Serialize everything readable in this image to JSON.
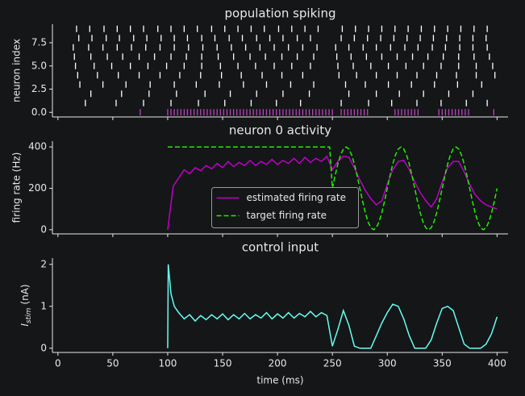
{
  "chart_data": [
    {
      "type": "raster",
      "title": "population spiking",
      "ylabel": "neuron index",
      "xlim": [
        -5,
        410
      ],
      "xticks": [
        0,
        50,
        100,
        150,
        200,
        250,
        300,
        350,
        400
      ],
      "show_xtick_labels": false,
      "ylim": [
        -0.5,
        9.5
      ],
      "yticks": [
        {
          "value": 0,
          "label": "0.0"
        },
        2.5,
        {
          "value": 5,
          "label": "5.0"
        },
        7.5
      ],
      "neurons": [
        {
          "index": 0,
          "color": "#c040c0",
          "spikes": [
            75,
            100,
            103,
            106,
            109,
            112,
            115,
            118,
            121,
            124,
            127,
            130,
            133,
            136,
            139,
            142,
            145,
            148,
            151,
            154,
            157,
            160,
            163,
            166,
            169,
            172,
            175,
            178,
            181,
            184,
            187,
            190,
            193,
            196,
            199,
            202,
            205,
            208,
            211,
            214,
            217,
            220,
            223,
            226,
            229,
            232,
            235,
            238,
            241,
            244,
            247,
            250,
            258,
            261,
            264,
            267,
            270,
            273,
            276,
            279,
            282,
            307,
            310,
            313,
            316,
            319,
            322,
            325,
            328,
            347,
            350,
            353,
            356,
            359,
            362,
            365,
            368,
            371,
            374,
            397
          ]
        },
        {
          "index": 1,
          "color": "#ffffff",
          "spikes": [
            25,
            53,
            78,
            103,
            128,
            152,
            176,
            199,
            221,
            258,
            283,
            304,
            327,
            349,
            372,
            391
          ]
        },
        {
          "index": 2,
          "color": "#ffffff",
          "spikes": [
            30,
            58,
            83,
            108,
            134,
            157,
            181,
            205,
            229,
            265,
            290,
            311,
            333,
            356,
            378
          ]
        },
        {
          "index": 3,
          "color": "#ffffff",
          "spikes": [
            20,
            41,
            62,
            84,
            106,
            126,
            147,
            169,
            190,
            212,
            233,
            262,
            280,
            301,
            322,
            343,
            364,
            386
          ]
        },
        {
          "index": 4,
          "color": "#ffffff",
          "spikes": [
            18,
            36,
            55,
            74,
            93,
            111,
            130,
            149,
            167,
            186,
            204,
            223,
            256,
            272,
            290,
            309,
            327,
            345,
            363,
            381,
            398
          ]
        },
        {
          "index": 5,
          "color": "#ffffff",
          "spikes": [
            16,
            33,
            49,
            66,
            82,
            99,
            115,
            131,
            148,
            164,
            180,
            197,
            213,
            230,
            255,
            269,
            285,
            301,
            317,
            333,
            349,
            365,
            381,
            396
          ]
        },
        {
          "index": 6,
          "color": "#ffffff",
          "spikes": [
            15,
            30,
            45,
            59,
            74,
            88,
            103,
            117,
            131,
            146,
            160,
            175,
            189,
            204,
            218,
            233,
            254,
            267,
            281,
            295,
            309,
            323,
            337,
            351,
            365,
            379,
            393
          ]
        },
        {
          "index": 7,
          "color": "#ffffff",
          "spikes": [
            14,
            28,
            41,
            54,
            67,
            80,
            93,
            106,
            119,
            132,
            145,
            158,
            171,
            184,
            197,
            210,
            223,
            236,
            253,
            265,
            278,
            290,
            303,
            316,
            328,
            341,
            353,
            366,
            378,
            391
          ]
        },
        {
          "index": 8,
          "color": "#ffffff",
          "spikes": [
            19,
            31,
            44,
            56,
            69,
            81,
            94,
            106,
            118,
            131,
            143,
            156,
            168,
            181,
            193,
            205,
            218,
            230,
            258,
            270,
            282,
            294,
            306,
            318,
            330,
            342,
            354,
            366,
            378,
            390
          ]
        },
        {
          "index": 9,
          "color": "#ffffff",
          "spikes": [
            17,
            29,
            42,
            54,
            66,
            78,
            91,
            103,
            115,
            127,
            140,
            152,
            164,
            176,
            188,
            201,
            213,
            225,
            237,
            259,
            271,
            283,
            295,
            307,
            319,
            331,
            343,
            355,
            367,
            379,
            391
          ]
        }
      ]
    },
    {
      "type": "line",
      "title": "neuron 0 activity",
      "ylabel": "firing rate (Hz)",
      "xlim": [
        -5,
        410
      ],
      "xticks": [
        0,
        50,
        100,
        150,
        200,
        250,
        300,
        350,
        400
      ],
      "show_xtick_labels": false,
      "ylim": [
        -20,
        428
      ],
      "yticks": [
        0,
        200,
        400
      ],
      "legend": "center",
      "series": [
        {
          "name": "estimated firing rate",
          "color": "#c000c8",
          "dash": false,
          "x": [
            100,
            105,
            110,
            115,
            120,
            125,
            130,
            135,
            140,
            145,
            150,
            155,
            160,
            165,
            170,
            175,
            180,
            185,
            190,
            195,
            200,
            205,
            210,
            215,
            220,
            225,
            230,
            235,
            240,
            245,
            250,
            255,
            260,
            265,
            270,
            275,
            280,
            285,
            290,
            295,
            300,
            305,
            310,
            315,
            320,
            325,
            330,
            335,
            340,
            345,
            350,
            355,
            360,
            365,
            370,
            375,
            380,
            385,
            390,
            395,
            400
          ],
          "values": [
            0,
            210,
            250,
            290,
            270,
            300,
            285,
            310,
            295,
            320,
            300,
            330,
            305,
            325,
            310,
            335,
            310,
            330,
            315,
            340,
            315,
            335,
            320,
            345,
            320,
            350,
            325,
            345,
            330,
            355,
            290,
            330,
            355,
            350,
            300,
            240,
            190,
            150,
            120,
            140,
            220,
            290,
            330,
            335,
            290,
            230,
            180,
            140,
            110,
            150,
            230,
            300,
            330,
            330,
            280,
            220,
            170,
            140,
            120,
            110,
            100
          ]
        },
        {
          "name": "target firing rate",
          "color": "#22ee00",
          "dash": true,
          "x": [
            100,
            247.5,
            250,
            252.5,
            255,
            257.5,
            260,
            262.5,
            265,
            267.5,
            270,
            272.5,
            275,
            277.5,
            280,
            282.5,
            285,
            287.5,
            290,
            292.5,
            295,
            297.5,
            300,
            302.5,
            305,
            307.5,
            310,
            312.5,
            315,
            317.5,
            320,
            322.5,
            325,
            327.5,
            330,
            332.5,
            335,
            337.5,
            340,
            342.5,
            345,
            347.5,
            350,
            352.5,
            355,
            357.5,
            360,
            362.5,
            365,
            367.5,
            370,
            372.5,
            375,
            377.5,
            380,
            382.5,
            385,
            387.5,
            390,
            392.5,
            395,
            397.5,
            400
          ],
          "values": [
            400,
            400,
            200,
            262,
            318,
            362,
            390,
            400,
            390,
            362,
            318,
            262,
            200,
            138,
            82,
            38,
            10,
            0,
            10,
            38,
            82,
            138,
            200,
            262,
            318,
            362,
            390,
            400,
            390,
            362,
            318,
            262,
            200,
            138,
            82,
            38,
            10,
            0,
            10,
            38,
            82,
            138,
            200,
            262,
            318,
            362,
            390,
            400,
            390,
            362,
            318,
            262,
            200,
            138,
            82,
            38,
            10,
            0,
            10,
            38,
            82,
            138,
            200
          ]
        }
      ]
    },
    {
      "type": "line",
      "title": "control input",
      "ylabel": {
        "symbol": "I",
        "subscript": "stim",
        "unit": "(nA)"
      },
      "xlabel": "time (ms)",
      "xlim": [
        -5,
        410
      ],
      "xticks": [
        0,
        50,
        100,
        150,
        200,
        250,
        300,
        350,
        400
      ],
      "show_xtick_labels": true,
      "ylim": [
        -0.1,
        2.15
      ],
      "yticks": [
        0,
        1,
        2
      ],
      "series": [
        {
          "color": "#66fff0",
          "dash": false,
          "x": [
            100,
            100.5,
            103,
            106,
            110,
            115,
            120,
            125,
            130,
            135,
            140,
            145,
            150,
            155,
            160,
            165,
            170,
            175,
            180,
            185,
            190,
            195,
            200,
            205,
            210,
            215,
            220,
            225,
            230,
            235,
            240,
            245,
            250,
            255,
            260,
            265,
            270,
            275,
            280,
            285,
            290,
            295,
            300,
            305,
            310,
            315,
            320,
            325,
            330,
            335,
            340,
            345,
            350,
            355,
            360,
            365,
            370,
            375,
            380,
            385,
            390,
            395,
            400
          ],
          "values": [
            0,
            2.0,
            1.3,
            1.0,
            0.85,
            0.7,
            0.8,
            0.65,
            0.78,
            0.68,
            0.8,
            0.7,
            0.82,
            0.68,
            0.8,
            0.7,
            0.83,
            0.7,
            0.8,
            0.72,
            0.85,
            0.7,
            0.82,
            0.72,
            0.85,
            0.72,
            0.83,
            0.75,
            0.88,
            0.75,
            0.85,
            0.78,
            0.05,
            0.45,
            0.9,
            0.55,
            0.05,
            0,
            0,
            0,
            0.3,
            0.6,
            0.85,
            1.05,
            1.0,
            0.7,
            0.3,
            0,
            0,
            0,
            0.2,
            0.6,
            0.95,
            1.0,
            0.9,
            0.5,
            0.1,
            0,
            0,
            0,
            0.1,
            0.35,
            0.75
          ]
        }
      ]
    }
  ]
}
